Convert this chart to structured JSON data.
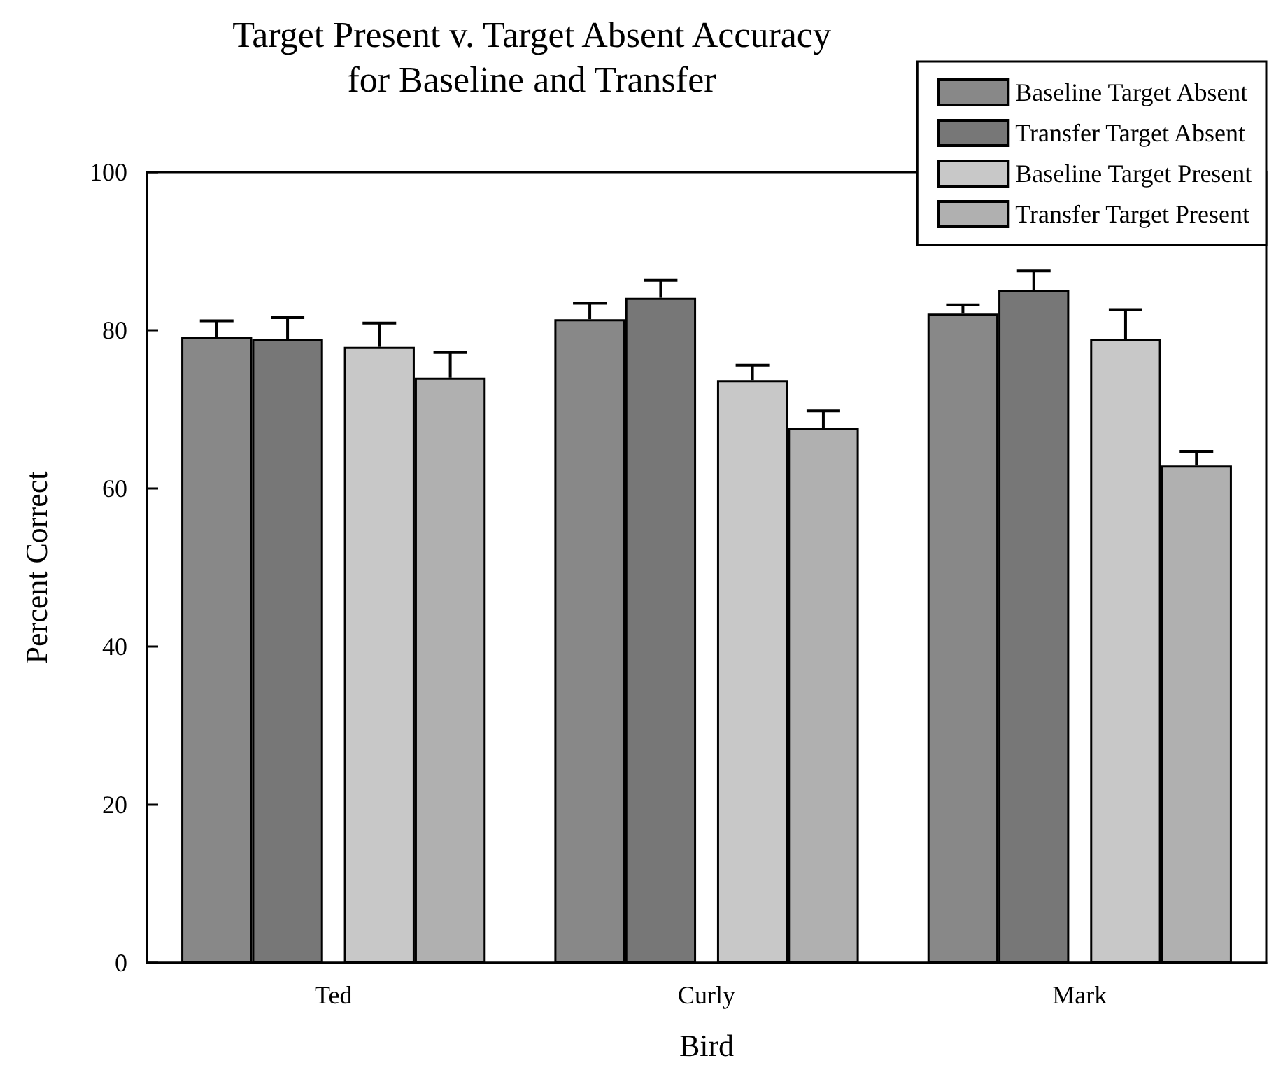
{
  "chart_data": {
    "type": "bar",
    "title": "Target Present v. Target Absent Accuracy\nfor Baseline and Transfer",
    "xlabel": "Bird",
    "ylabel": "Percent Correct",
    "categories": [
      "Ted",
      "Curly",
      "Mark"
    ],
    "series": [
      {
        "name": "Baseline Target Absent",
        "color": "#888888",
        "values": [
          79.2,
          81.4,
          82.1
        ],
        "errors": [
          [
            79.2,
            81.2
          ],
          [
            81.4,
            83.4
          ],
          [
            82.1,
            83.2
          ]
        ]
      },
      {
        "name": "Transfer Target Absent",
        "color": "#777777",
        "values": [
          78.9,
          84.1,
          85.1
        ],
        "errors": [
          [
            78.9,
            81.6
          ],
          [
            84.1,
            86.3
          ],
          [
            85.1,
            87.5
          ]
        ]
      },
      {
        "name": "Baseline Target Present",
        "color": "#c8c8c8",
        "values": [
          77.9,
          73.7,
          78.9
        ],
        "errors": [
          [
            77.9,
            80.9
          ],
          [
            73.7,
            75.6
          ],
          [
            78.9,
            82.6
          ]
        ]
      },
      {
        "name": "Transfer Target Present",
        "color": "#b0b0b0",
        "values": [
          74.0,
          67.7,
          62.9
        ],
        "errors": [
          [
            74.0,
            77.2
          ],
          [
            67.7,
            69.8
          ],
          [
            62.9,
            64.7
          ]
        ]
      }
    ],
    "ylim": [
      0,
      100
    ],
    "yticks": [
      0,
      20,
      40,
      60,
      80,
      100
    ],
    "grid": false,
    "legend": "top right"
  }
}
